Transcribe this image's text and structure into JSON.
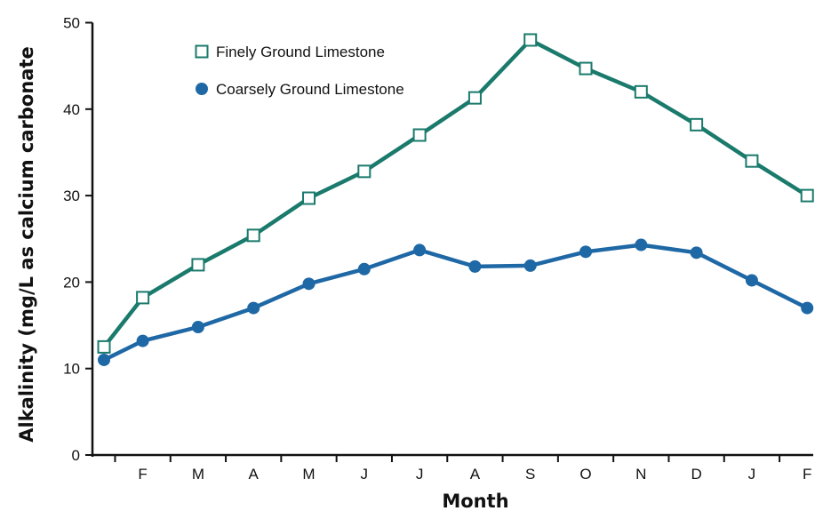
{
  "chart_data": {
    "type": "line",
    "xlabel": "Month",
    "ylabel": "Alkalinity (mg/L as calcium carbonate",
    "categories": [
      "",
      "F",
      "M",
      "A",
      "M",
      "J",
      "J",
      "A",
      "S",
      "O",
      "N",
      "D",
      "J",
      "F"
    ],
    "ylim": [
      0,
      50
    ],
    "yticks": [
      0,
      10,
      20,
      30,
      40,
      50
    ],
    "grid": false,
    "legend_position": "top-left",
    "series": [
      {
        "name": "Finely Ground Limestone",
        "color": "#1a7a6c",
        "marker": "open-square",
        "x": [
          0,
          0.7,
          1.7,
          2.7,
          3.7,
          4.7,
          5.7,
          6.7,
          7.7,
          8.7,
          9.7,
          10.7,
          11.7,
          12.7
        ],
        "values": [
          12.5,
          18.2,
          22.0,
          25.4,
          29.7,
          32.8,
          37.0,
          41.3,
          48.0,
          44.7,
          42.0,
          38.2,
          34.0,
          30.0
        ]
      },
      {
        "name": "Coarsely Ground Limestone",
        "color": "#1f68a6",
        "marker": "filled-circle",
        "x": [
          0,
          0.7,
          1.7,
          2.7,
          3.7,
          4.7,
          5.7,
          6.7,
          7.7,
          8.7,
          9.7,
          10.7,
          11.7,
          12.7
        ],
        "values": [
          11.0,
          13.2,
          14.8,
          17.0,
          19.8,
          21.5,
          23.7,
          21.8,
          21.9,
          23.5,
          24.3,
          23.4,
          20.2,
          17.0
        ]
      }
    ]
  }
}
